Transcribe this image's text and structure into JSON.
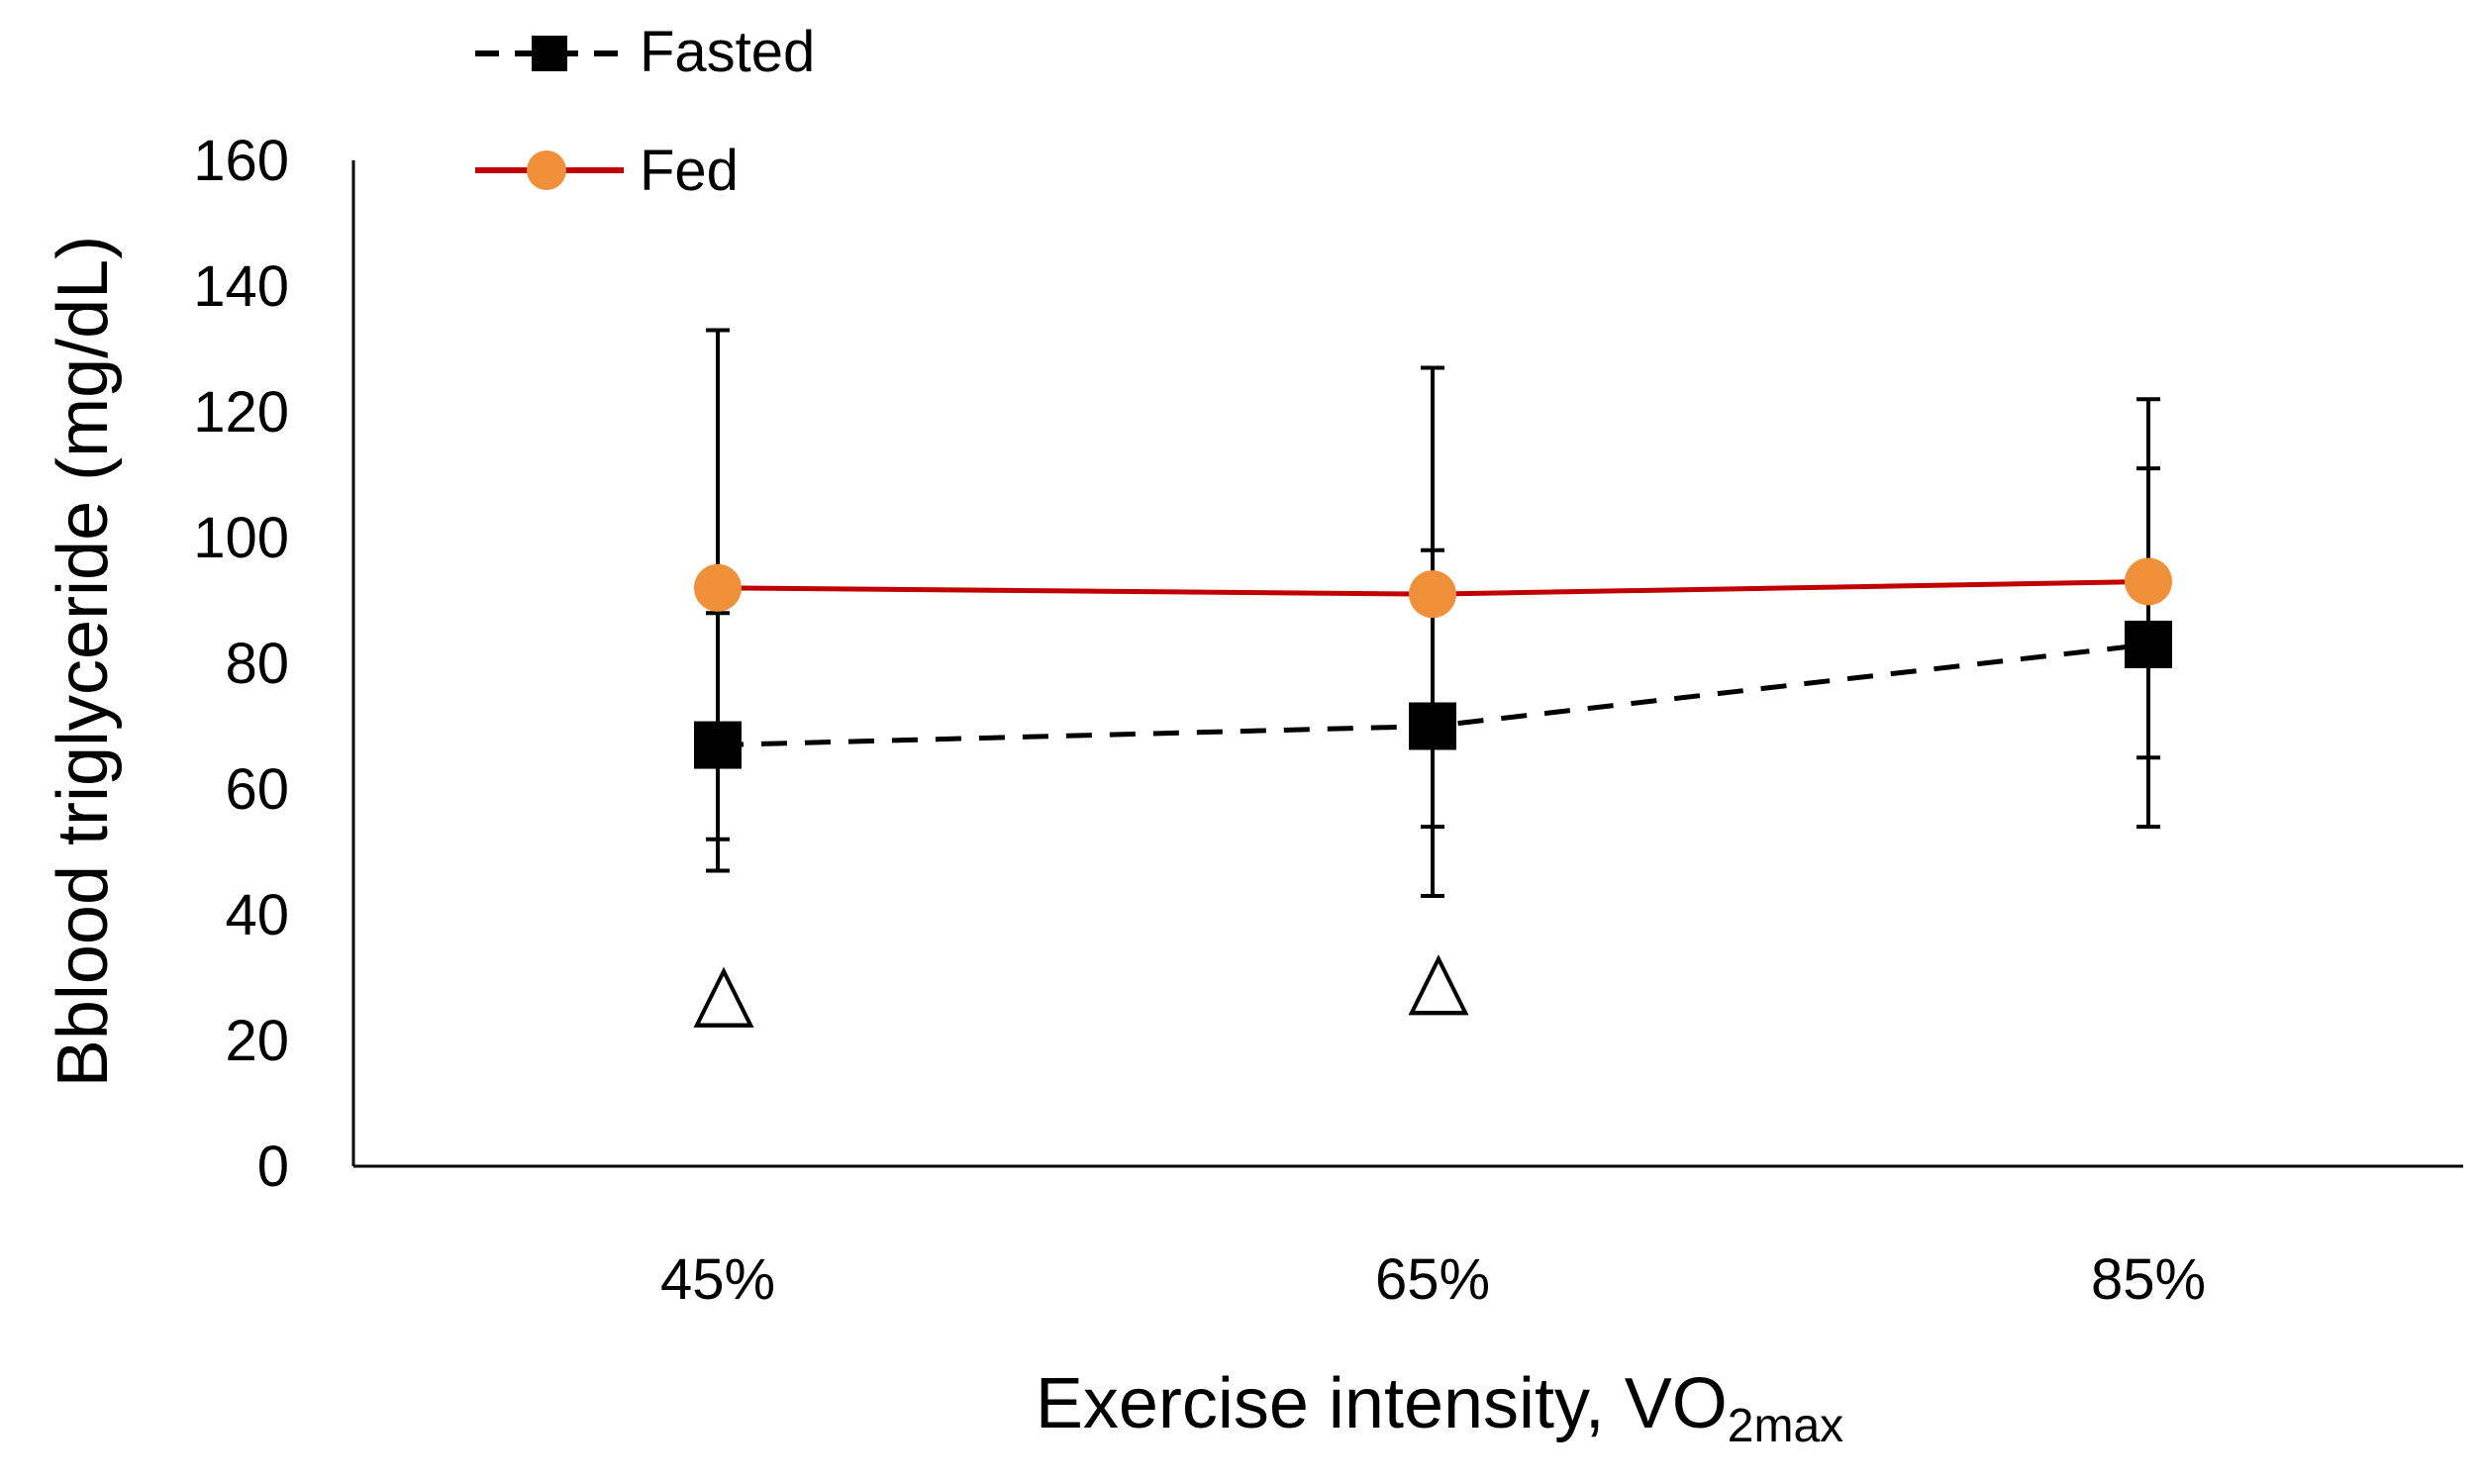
{
  "chart_data": {
    "type": "line",
    "title": "",
    "xlabel": "Exercise intensity, ",
    "xlabel_formula": {
      "main": "VO",
      "sub": "2max"
    },
    "ylabel": "Bblood triglyceride (mg/dL)",
    "categories": [
      "45%",
      "65%",
      "85%"
    ],
    "ylim": [
      0,
      160
    ],
    "yticks": [
      "0",
      "20",
      "40",
      "60",
      "80",
      "100",
      "120",
      "140",
      "160"
    ],
    "ytick_values": [
      0,
      20,
      40,
      60,
      80,
      100,
      120,
      140,
      160
    ],
    "grid": false,
    "legend_position": "top-left",
    "series": [
      {
        "name": "Fasted",
        "values": [
          67,
          70,
          83
        ],
        "error_upper": [
          88,
          98,
          111
        ],
        "error_lower": [
          47,
          43,
          54
        ],
        "color": "#000000",
        "line_style": "dashed",
        "marker": "square"
      },
      {
        "name": "Fed",
        "values": [
          92,
          91,
          93
        ],
        "error_upper": [
          133,
          127,
          122
        ],
        "error_lower": [
          52,
          54,
          65
        ],
        "color": "#c00000",
        "marker_color": "#f0913a",
        "line_style": "solid",
        "marker": "circle"
      }
    ],
    "annotations": [
      {
        "category": "45%",
        "y": 28,
        "text": "△"
      },
      {
        "category": "65%",
        "y": 30,
        "text": "△"
      }
    ]
  }
}
